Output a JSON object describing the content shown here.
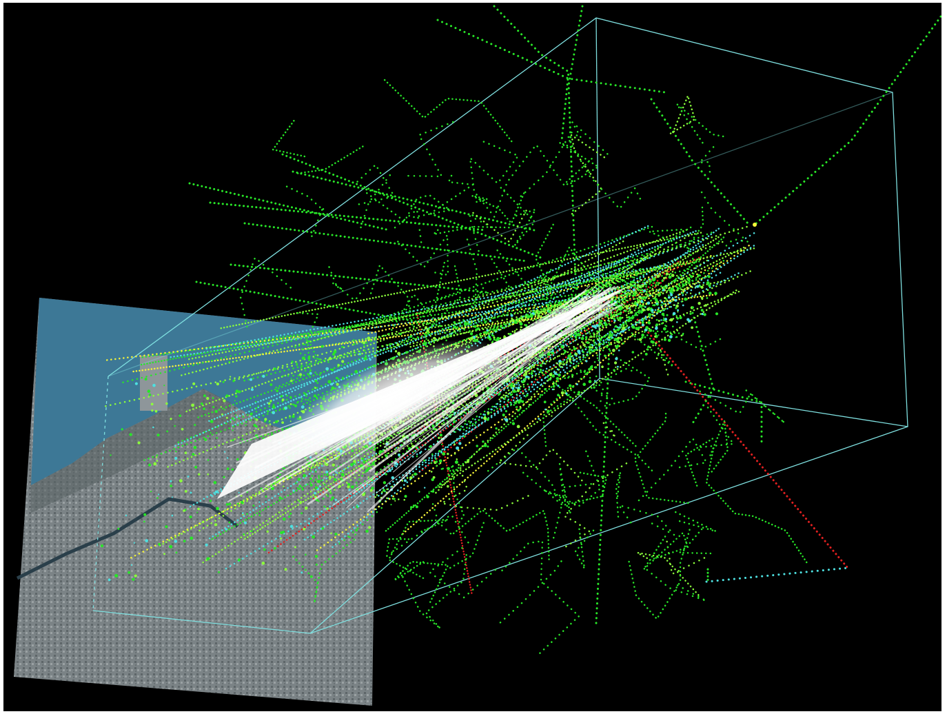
{
  "view": {
    "background": "#000000",
    "frame_color": "#ffffff",
    "overlay_image": "aerial-city-map",
    "bounding_box_color": "#7fe0e0"
  },
  "palette": {
    "track_green": "#28e628",
    "track_lime": "#8cff3c",
    "track_cyan": "#4de0e0",
    "track_yellow": "#f5f53a",
    "track_red": "#e02020",
    "core_white": "#ffffff",
    "water": "#3f7a96",
    "land": "#7d8588"
  }
}
